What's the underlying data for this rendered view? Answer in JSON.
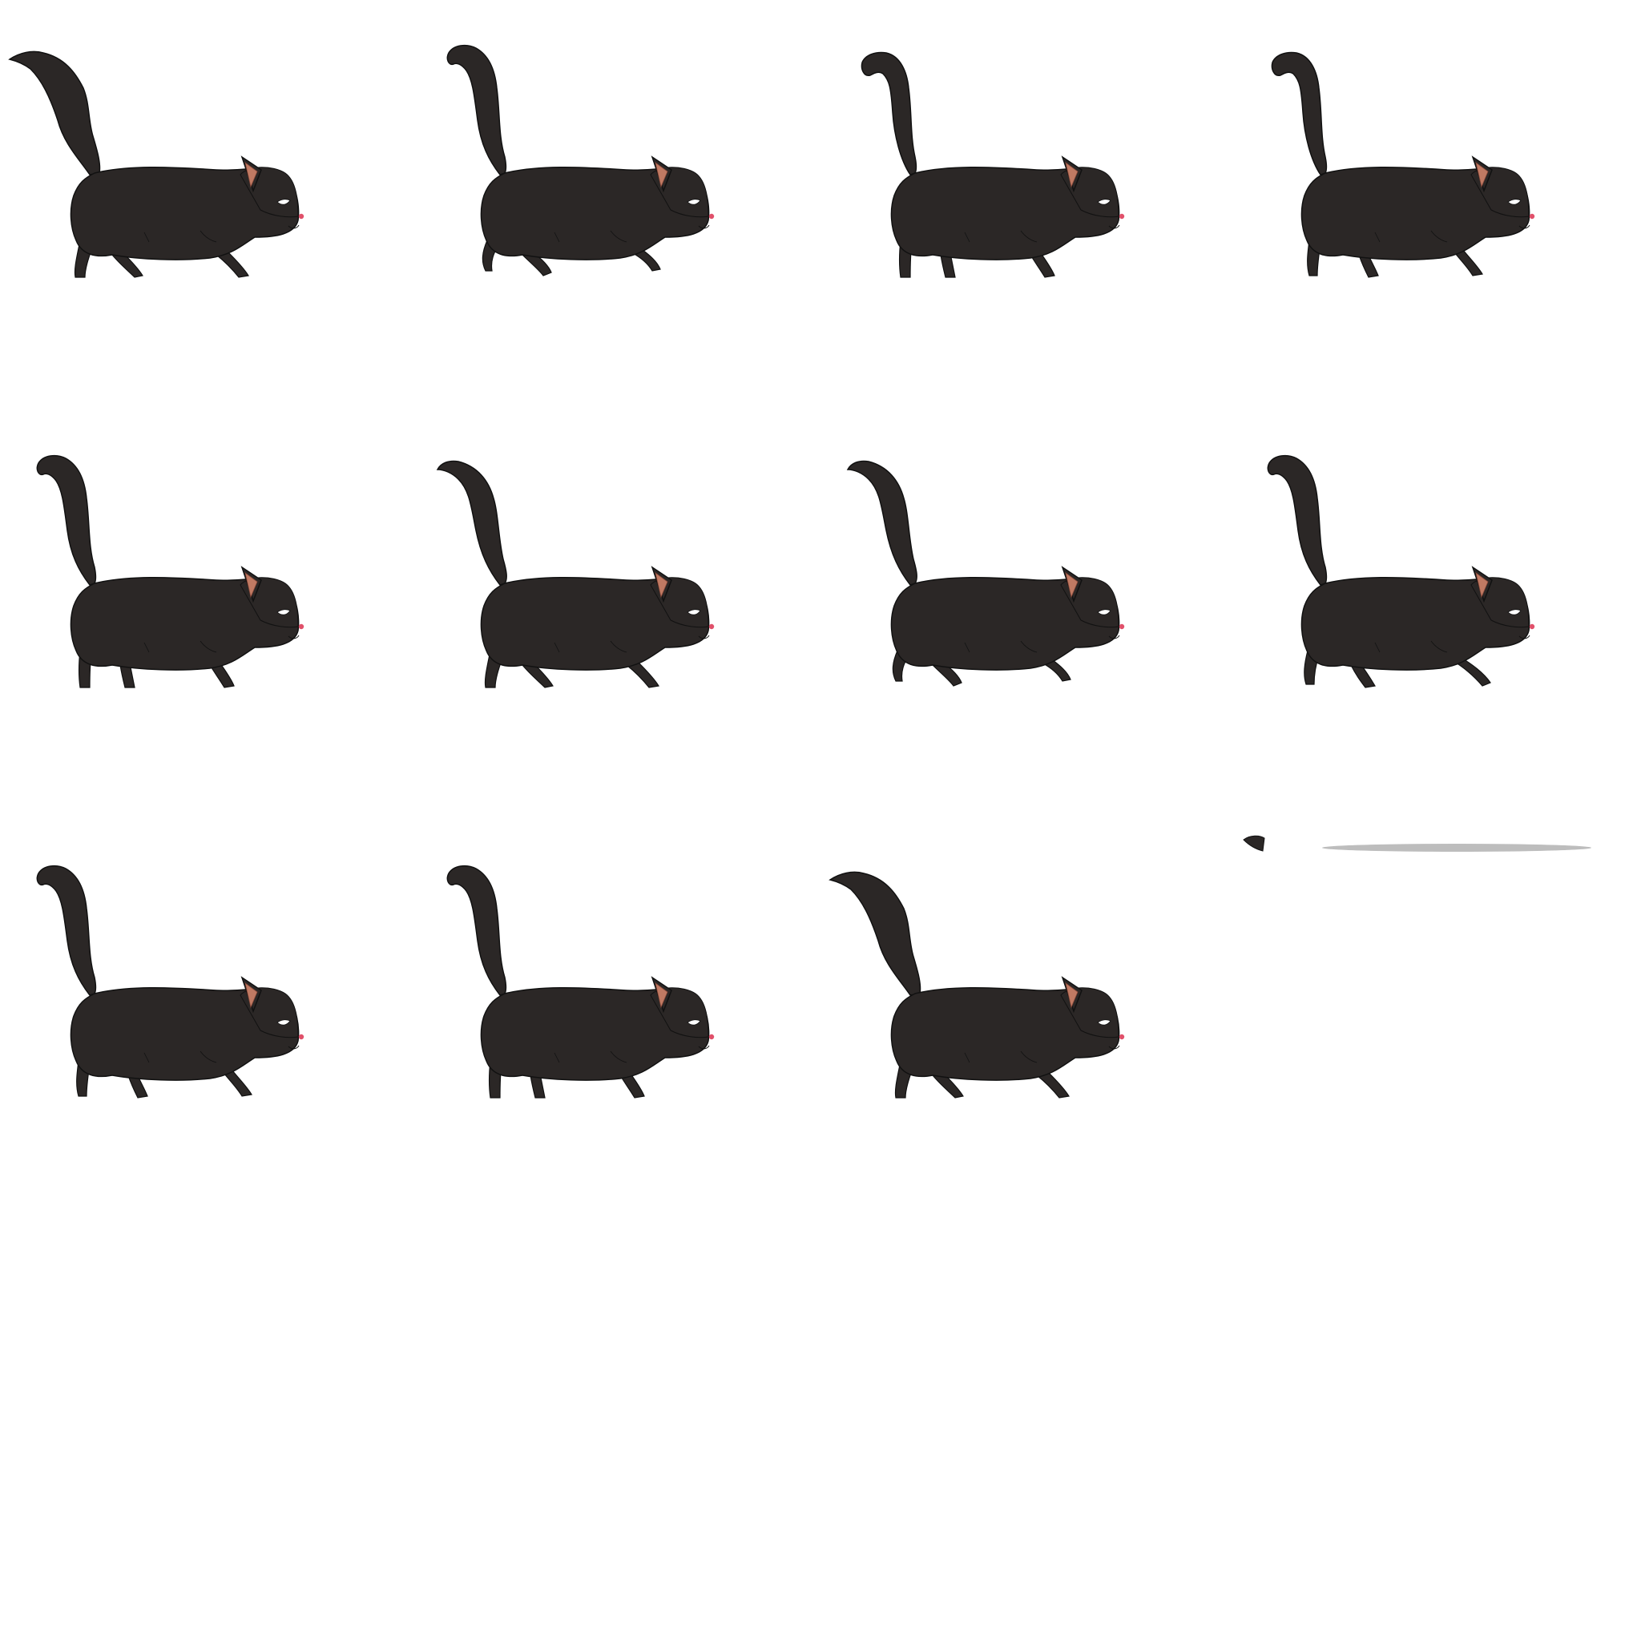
{
  "sprite_sheet": {
    "background_color": "#ffffff",
    "palette": {
      "fur": "#2b2726",
      "outline": "#111111",
      "ear_inner": "#c07a63",
      "nose": "#e0506a",
      "eye": "#ffffff",
      "shadow": "#bdbdbd"
    },
    "animation": "walk",
    "rows": [
      {
        "frames": [
          {
            "tail": "high-curl",
            "front_leg": "extended"
          },
          {
            "tail": "hook",
            "front_leg": "lifted"
          },
          {
            "tail": "hook-tight",
            "front_leg": "planted"
          },
          {
            "tail": "hook-tight",
            "front_leg": "stepping"
          }
        ]
      },
      {
        "frames": [
          {
            "tail": "hook",
            "front_leg": "planted"
          },
          {
            "tail": "swept",
            "front_leg": "extended"
          },
          {
            "tail": "swept",
            "front_leg": "lifted"
          },
          {
            "tail": "hook",
            "front_leg": "reaching"
          }
        ]
      },
      {
        "frames": [
          {
            "tail": "hook",
            "front_leg": "stepping"
          },
          {
            "tail": "hook",
            "front_leg": "planted"
          },
          {
            "tail": "high-curl",
            "front_leg": "extended"
          }
        ]
      }
    ],
    "extras": [
      {
        "type": "paw-fragment"
      },
      {
        "type": "ground-shadow"
      }
    ]
  }
}
